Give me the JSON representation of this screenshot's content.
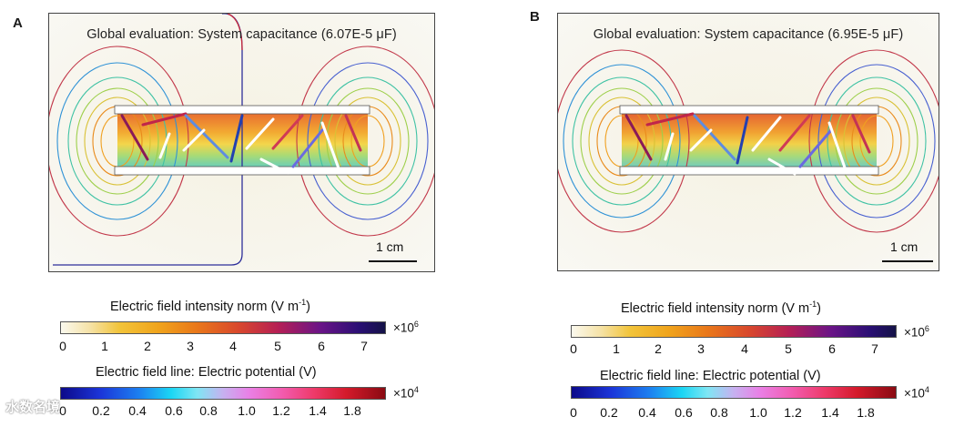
{
  "panels": [
    {
      "letter": "A",
      "title": "Global evaluation: System capacitance (6.07E-5 μF)",
      "scale_label": "1 cm"
    },
    {
      "letter": "B",
      "title": "Global evaluation: System capacitance (6.95E-5 μF)",
      "scale_label": "1 cm"
    }
  ],
  "colorbars": {
    "field": {
      "title_main": "Electric field intensity norm (V m",
      "title_sup": "-1",
      "title_end": ")",
      "ticks": [
        "0",
        "1",
        "2",
        "3",
        "4",
        "5",
        "6",
        "7"
      ],
      "multiplier": "×10",
      "multiplier_exp": "6"
    },
    "potential": {
      "title": "Electric field line: Electric potential (V)",
      "ticks": [
        "0",
        "0.2",
        "0.4",
        "0.6",
        "0.8",
        "1.0",
        "1.2",
        "1.4",
        "1.8"
      ],
      "multiplier": "×10",
      "multiplier_exp": "4"
    }
  },
  "watermark": "水数名境"
}
